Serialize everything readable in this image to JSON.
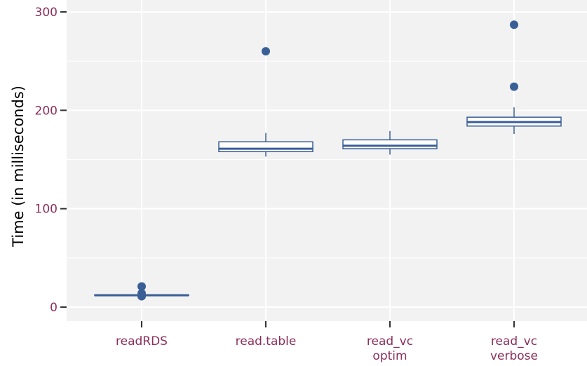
{
  "chart_data": {
    "type": "boxplot",
    "categories": [
      [
        "readRDS"
      ],
      [
        "read.table"
      ],
      [
        "read_vc",
        "optim"
      ],
      [
        "read_vc",
        "verbose"
      ]
    ],
    "ylabel": "Time (in milliseconds)",
    "xlabel": "",
    "ylim": [
      -15,
      303
    ],
    "yticks": [
      0,
      100,
      200,
      300
    ],
    "grid": true,
    "colors": {
      "panel": "#f2f2f2",
      "grid": "#ffffff",
      "box": "#3a5f96",
      "tick_label": "#8b2e5c",
      "axis_title": "#000000"
    },
    "boxes": [
      {
        "lower_whisker": 11,
        "q1": 12,
        "median": 12,
        "q3": 12.5,
        "upper_whisker": 13,
        "outliers": [
          21,
          14,
          11
        ]
      },
      {
        "lower_whisker": 153,
        "q1": 158,
        "median": 161,
        "q3": 168,
        "upper_whisker": 177,
        "outliers": [
          260
        ]
      },
      {
        "lower_whisker": 155,
        "q1": 161,
        "median": 164,
        "q3": 170,
        "upper_whisker": 179,
        "outliers": []
      },
      {
        "lower_whisker": 176,
        "q1": 184,
        "median": 188,
        "q3": 193,
        "upper_whisker": 203,
        "outliers": [
          224,
          287
        ]
      }
    ]
  }
}
